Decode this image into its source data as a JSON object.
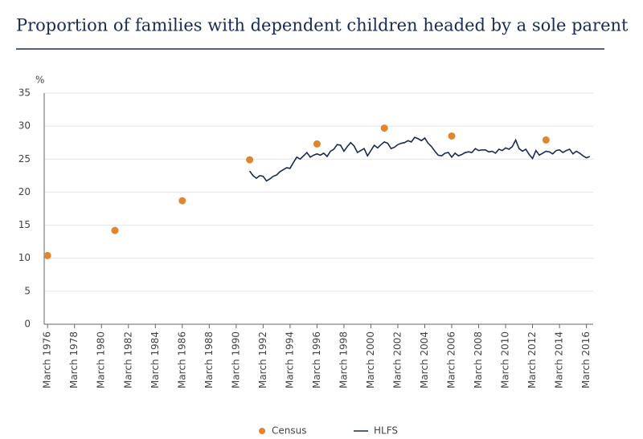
{
  "chart_data": {
    "type": "line",
    "title": "Proportion of families with dependent children headed by a sole parent",
    "y_label": "%",
    "xlim": [
      "1975-12",
      "2016-09"
    ],
    "ylim": [
      0,
      35
    ],
    "yticks": [
      0,
      5,
      10,
      15,
      20,
      25,
      30,
      35
    ],
    "xticks": [
      {
        "value": "1976-03",
        "label": "March 1976"
      },
      {
        "value": "1978-03",
        "label": "March 1978"
      },
      {
        "value": "1980-03",
        "label": "March 1980"
      },
      {
        "value": "1982-03",
        "label": "March 1982"
      },
      {
        "value": "1984-03",
        "label": "March 1984"
      },
      {
        "value": "1986-03",
        "label": "March 1986"
      },
      {
        "value": "1988-03",
        "label": "March 1988"
      },
      {
        "value": "1990-03",
        "label": "March 1990"
      },
      {
        "value": "1992-03",
        "label": "March 1992"
      },
      {
        "value": "1994-03",
        "label": "March 1994"
      },
      {
        "value": "1996-03",
        "label": "March 1996"
      },
      {
        "value": "1998-03",
        "label": "March 1998"
      },
      {
        "value": "2000-03",
        "label": "March 2000"
      },
      {
        "value": "2002-03",
        "label": "March 2002"
      },
      {
        "value": "2004-03",
        "label": "March 2004"
      },
      {
        "value": "2006-03",
        "label": "March 2006"
      },
      {
        "value": "2008-03",
        "label": "March 2008"
      },
      {
        "value": "2010-03",
        "label": "March 2010"
      },
      {
        "value": "2012-03",
        "label": "March 2012"
      },
      {
        "value": "2014-03",
        "label": "March 2014"
      },
      {
        "value": "2016-03",
        "label": "March 2016"
      }
    ],
    "grid": true,
    "legend": "bottom",
    "series": [
      {
        "name": "Census",
        "style": "dots",
        "color": "#e0862f",
        "x": [
          "1976-03",
          "1981-03",
          "1986-03",
          "1991-03",
          "1996-03",
          "2001-03",
          "2006-03",
          "2013-03"
        ],
        "values": [
          10.4,
          14.2,
          18.7,
          24.9,
          27.3,
          29.7,
          28.5,
          27.9
        ]
      },
      {
        "name": "HLFS",
        "style": "line",
        "color": "#1a2a55",
        "x": [
          "1991-03",
          "1991-06",
          "1991-09",
          "1991-12",
          "1992-03",
          "1992-06",
          "1992-09",
          "1992-12",
          "1993-03",
          "1993-06",
          "1993-09",
          "1993-12",
          "1994-03",
          "1994-06",
          "1994-09",
          "1994-12",
          "1995-03",
          "1995-06",
          "1995-09",
          "1995-12",
          "1996-03",
          "1996-06",
          "1996-09",
          "1996-12",
          "1997-03",
          "1997-06",
          "1997-09",
          "1997-12",
          "1998-03",
          "1998-06",
          "1998-09",
          "1998-12",
          "1999-03",
          "1999-06",
          "1999-09",
          "1999-12",
          "2000-03",
          "2000-06",
          "2000-09",
          "2000-12",
          "2001-03",
          "2001-06",
          "2001-09",
          "2001-12",
          "2002-03",
          "2002-06",
          "2002-09",
          "2002-12",
          "2003-03",
          "2003-06",
          "2003-09",
          "2003-12",
          "2004-03",
          "2004-06",
          "2004-09",
          "2004-12",
          "2005-03",
          "2005-06",
          "2005-09",
          "2005-12",
          "2006-03",
          "2006-06",
          "2006-09",
          "2006-12",
          "2007-03",
          "2007-06",
          "2007-09",
          "2007-12",
          "2008-03",
          "2008-06",
          "2008-09",
          "2008-12",
          "2009-03",
          "2009-06",
          "2009-09",
          "2009-12",
          "2010-03",
          "2010-06",
          "2010-09",
          "2010-12",
          "2011-03",
          "2011-06",
          "2011-09",
          "2011-12",
          "2012-03",
          "2012-06",
          "2012-09",
          "2012-12",
          "2013-03",
          "2013-06",
          "2013-09",
          "2013-12",
          "2014-03",
          "2014-06",
          "2014-09",
          "2014-12",
          "2015-03",
          "2015-06",
          "2015-09",
          "2015-12",
          "2016-03",
          "2016-06"
        ],
        "values": [
          23.2,
          22.5,
          22.1,
          22.5,
          22.4,
          21.7,
          22.0,
          22.4,
          22.6,
          23.1,
          23.4,
          23.7,
          23.6,
          24.5,
          25.3,
          25.0,
          25.5,
          26.0,
          25.3,
          25.6,
          25.8,
          25.6,
          25.9,
          25.4,
          26.2,
          26.5,
          27.2,
          27.1,
          26.2,
          26.9,
          27.5,
          27.0,
          26.0,
          26.3,
          26.6,
          25.5,
          26.3,
          27.1,
          26.7,
          27.2,
          27.6,
          27.4,
          26.6,
          26.8,
          27.2,
          27.4,
          27.5,
          27.8,
          27.6,
          28.3,
          28.1,
          27.8,
          28.2,
          27.4,
          26.9,
          26.2,
          25.6,
          25.5,
          25.9,
          26.0,
          25.3,
          25.9,
          25.5,
          25.7,
          26.0,
          26.1,
          26.0,
          26.6,
          26.3,
          26.4,
          26.4,
          26.1,
          26.2,
          25.9,
          26.5,
          26.3,
          26.7,
          26.5,
          26.9,
          27.9,
          26.6,
          26.2,
          26.5,
          25.7,
          25.1,
          26.3,
          25.6,
          25.9,
          26.2,
          26.1,
          25.8,
          26.3,
          26.4,
          26.0,
          26.3,
          26.5,
          25.8,
          26.2,
          25.9,
          25.5,
          25.2,
          25.4
        ]
      }
    ]
  }
}
